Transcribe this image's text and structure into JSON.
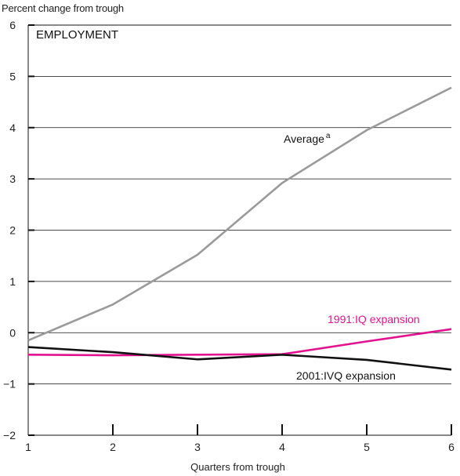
{
  "chart_data": {
    "type": "line",
    "title": "EMPLOYMENT",
    "ylabel": "Percent change from trough",
    "xlabel": "Quarters from trough",
    "x": [
      1,
      2,
      3,
      4,
      5,
      6
    ],
    "xlim": [
      1,
      6
    ],
    "ylim": [
      -2,
      6
    ],
    "yticks": [
      6,
      5,
      4,
      3,
      2,
      1,
      0,
      -1,
      -2
    ],
    "ytick_labels": [
      "6",
      "5",
      "4",
      "3",
      "2",
      "1",
      "0",
      "−1",
      "−2"
    ],
    "xtick_labels": [
      "1",
      "2",
      "3",
      "4",
      "5",
      "6"
    ],
    "grid": "horizontal",
    "series": [
      {
        "name": "Average",
        "superscript": "a",
        "color": "#9a9a9a",
        "values": [
          -0.15,
          0.55,
          1.52,
          2.92,
          3.95,
          4.78
        ]
      },
      {
        "name": "1991:IQ expansion",
        "color": "#e2138f",
        "values": [
          -0.43,
          -0.44,
          -0.43,
          -0.42,
          -0.17,
          0.07
        ]
      },
      {
        "name": "2001:IVQ expansion",
        "color": "#111111",
        "values": [
          -0.28,
          -0.38,
          -0.52,
          -0.43,
          -0.53,
          -0.72
        ]
      }
    ]
  }
}
